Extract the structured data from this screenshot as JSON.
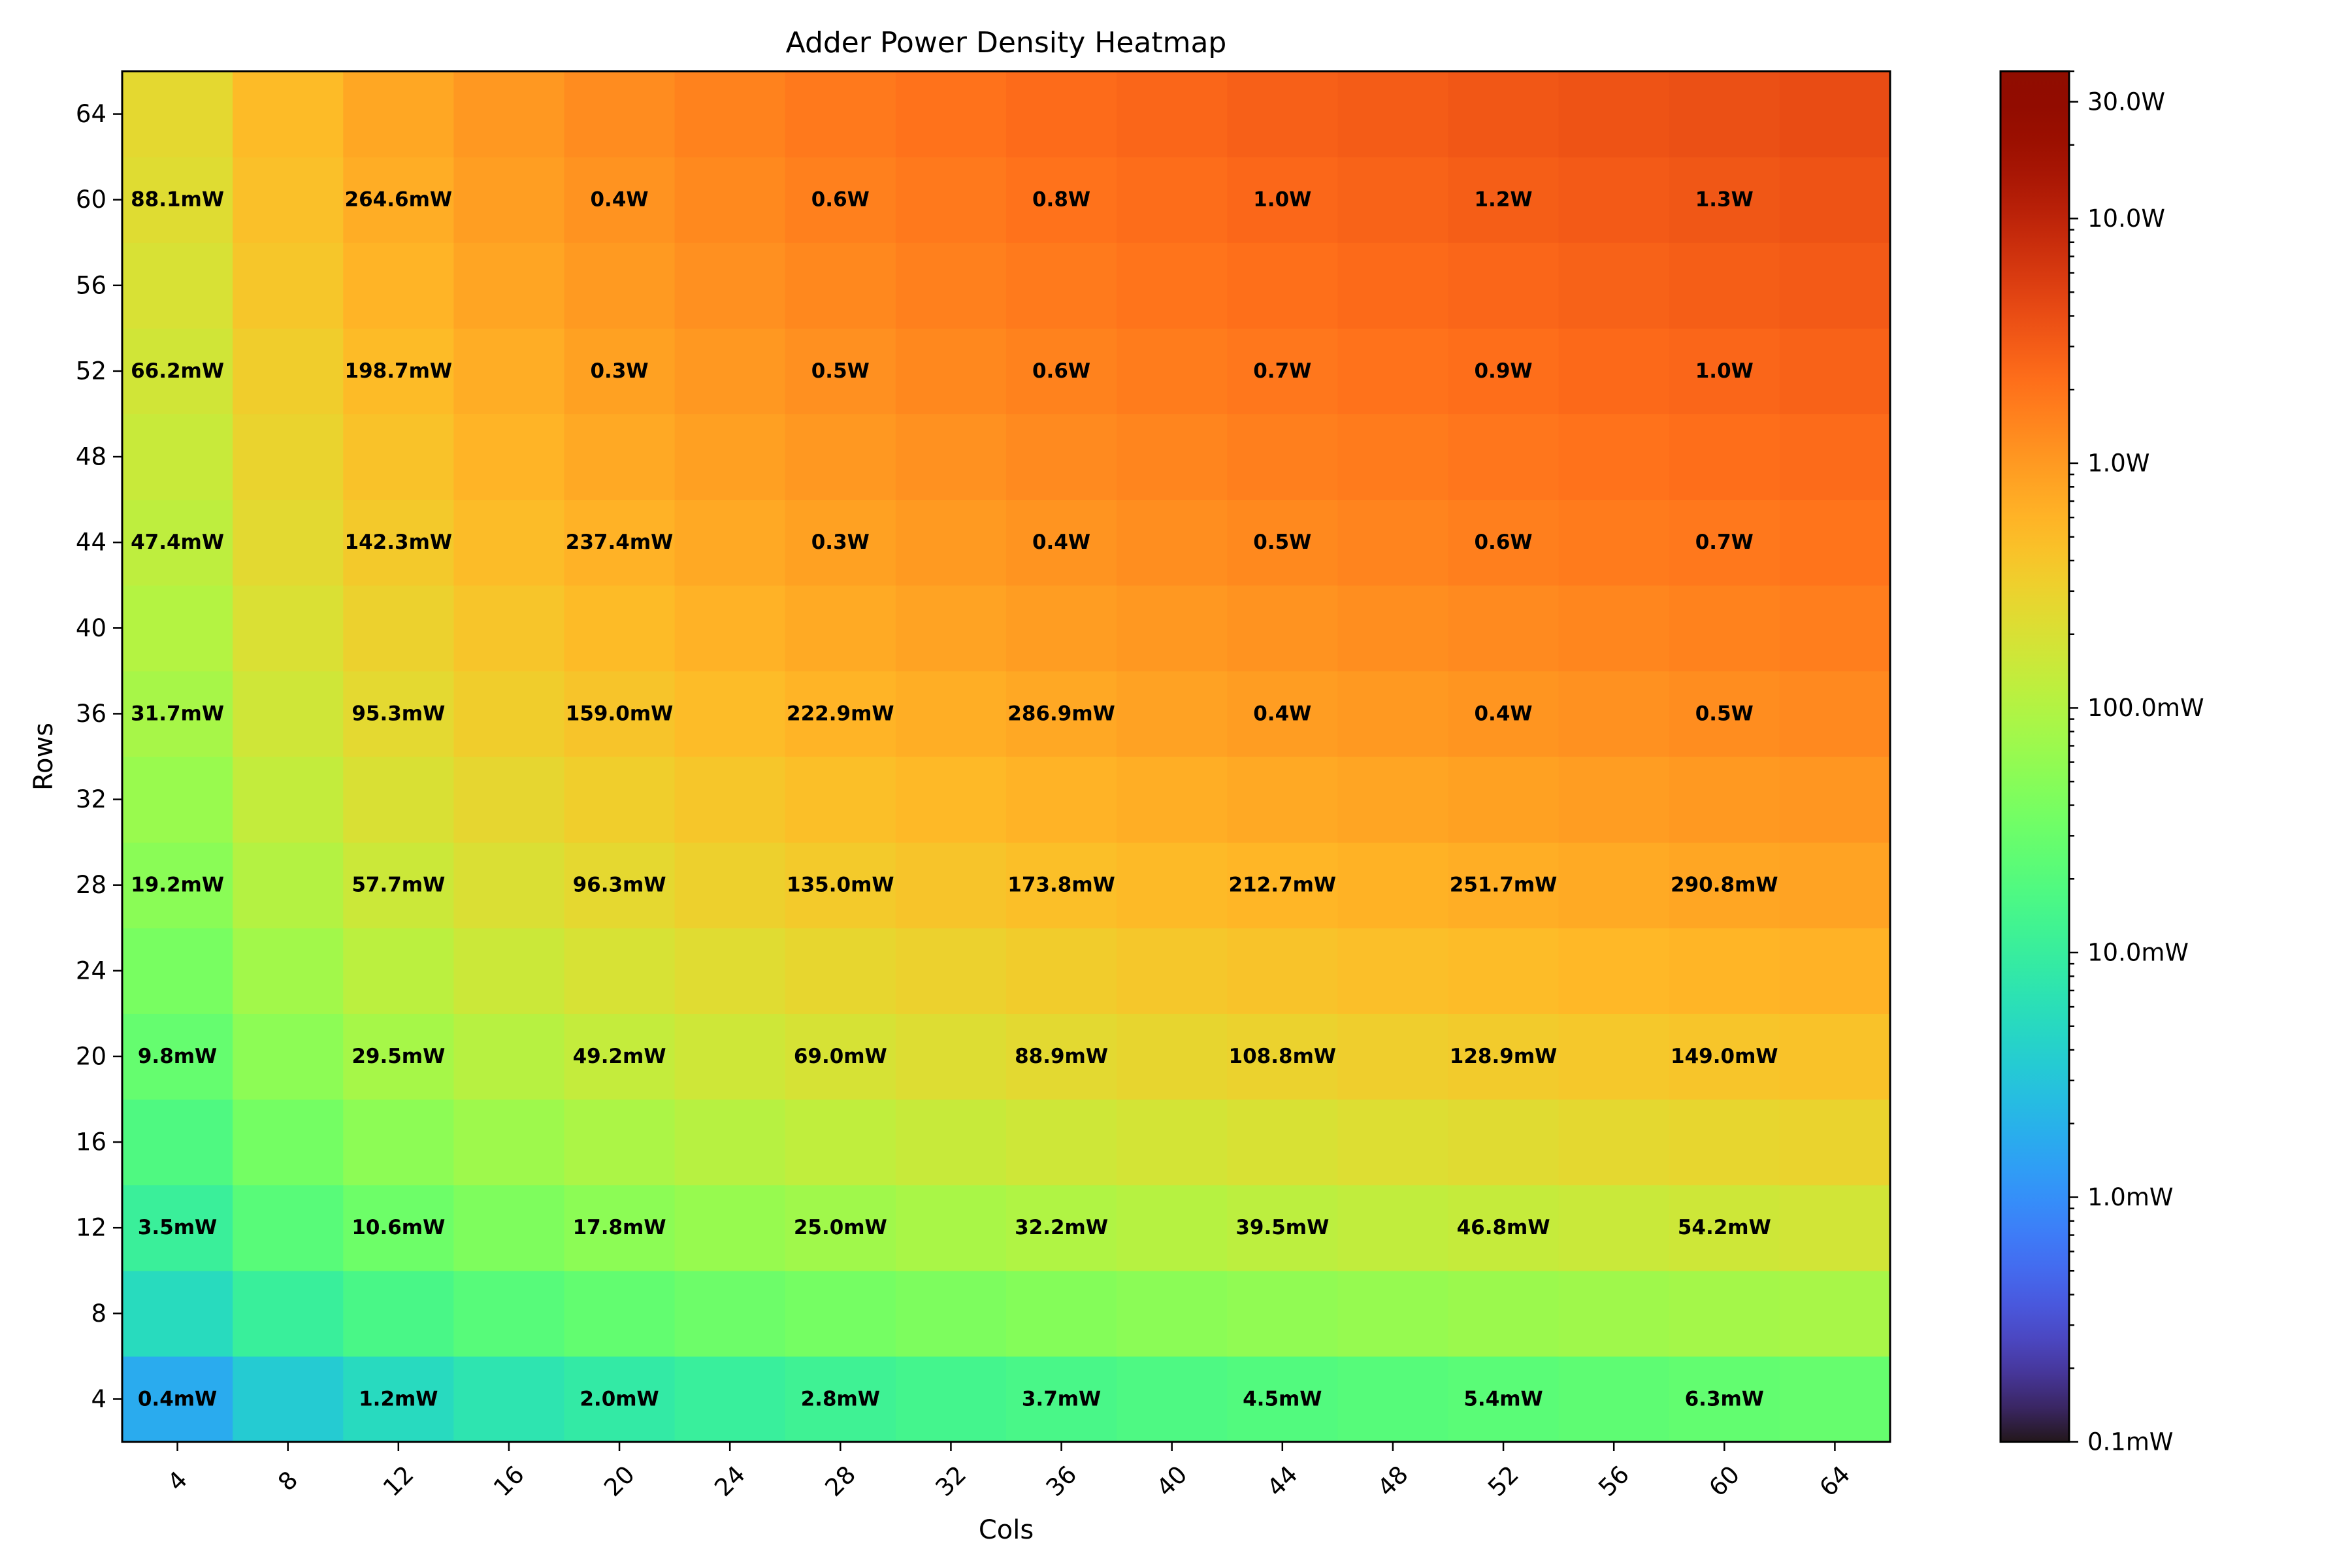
{
  "chart_data": {
    "type": "heatmap",
    "title": "Adder Power Density Heatmap",
    "xlabel": "Cols",
    "ylabel": "Rows",
    "x_ticks": [
      4,
      8,
      12,
      16,
      20,
      24,
      28,
      32,
      36,
      40,
      44,
      48,
      52,
      56,
      60,
      64
    ],
    "y_ticks": [
      4,
      8,
      12,
      16,
      20,
      24,
      28,
      32,
      36,
      40,
      44,
      48,
      52,
      56,
      60,
      64
    ],
    "color_scale": "log",
    "colormap": "turbo",
    "colorbar_range_watts": [
      0.0001,
      40
    ],
    "colorbar_ticks": [
      {
        "value_w": 0.0001,
        "label": "0.1mW"
      },
      {
        "value_w": 0.001,
        "label": "1.0mW"
      },
      {
        "value_w": 0.01,
        "label": "10.0mW"
      },
      {
        "value_w": 0.1,
        "label": "100.0mW"
      },
      {
        "value_w": 1.0,
        "label": "1.0W"
      },
      {
        "value_w": 10.0,
        "label": "10.0W"
      },
      {
        "value_w": 30.0,
        "label": "30.0W"
      }
    ],
    "label_cols": [
      4,
      12,
      20,
      28,
      36,
      44,
      52,
      60
    ],
    "label_rows": [
      4,
      12,
      20,
      28,
      36,
      44,
      52,
      60
    ],
    "cell_labels": [
      [
        "0.4mW",
        "1.2mW",
        "2.0mW",
        "2.8mW",
        "3.7mW",
        "4.5mW",
        "5.4mW",
        "6.3mW"
      ],
      [
        "3.5mW",
        "10.6mW",
        "17.8mW",
        "25.0mW",
        "32.2mW",
        "39.5mW",
        "46.8mW",
        "54.2mW"
      ],
      [
        "9.8mW",
        "29.5mW",
        "49.2mW",
        "69.0mW",
        "88.9mW",
        "108.8mW",
        "128.9mW",
        "149.0mW"
      ],
      [
        "19.2mW",
        "57.7mW",
        "96.3mW",
        "135.0mW",
        "173.8mW",
        "212.7mW",
        "251.7mW",
        "290.8mW"
      ],
      [
        "31.7mW",
        "95.3mW",
        "159.0mW",
        "222.9mW",
        "286.9mW",
        "0.4W",
        "0.4W",
        "0.5W"
      ],
      [
        "47.4mW",
        "142.3mW",
        "237.4mW",
        "0.3W",
        "0.4W",
        "0.5W",
        "0.6W",
        "0.7W"
      ],
      [
        "66.2mW",
        "198.7mW",
        "0.3W",
        "0.5W",
        "0.6W",
        "0.7W",
        "0.9W",
        "1.0W"
      ],
      [
        "88.1mW",
        "264.6mW",
        "0.4W",
        "0.6W",
        "0.8W",
        "1.0W",
        "1.2W",
        "1.3W"
      ]
    ],
    "grid": false
  }
}
